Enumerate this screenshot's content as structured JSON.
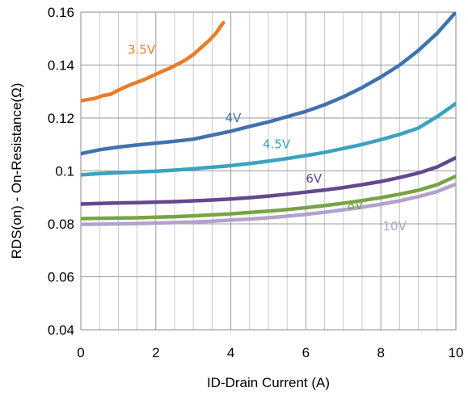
{
  "chart_data": {
    "type": "line",
    "title": "",
    "xlabel": "ID-Drain Current (A)",
    "ylabel": "RDS(on) - On-Resistance(Ω)",
    "xlim": [
      0,
      10
    ],
    "ylim": [
      0.04,
      0.16
    ],
    "x_ticks": [
      "0",
      "2",
      "4",
      "6",
      "8",
      "10"
    ],
    "y_ticks": [
      "0.04",
      "0.06",
      "0.08",
      "0.1",
      "0.12",
      "0.14",
      "0.16"
    ],
    "grid": true,
    "minor_grid_x": 0.5,
    "legend": "none",
    "series": [
      {
        "name": "3.5V",
        "color": "#e87d2a",
        "x": [
          0,
          0.2,
          0.4,
          0.6,
          0.8,
          1.0,
          1.2,
          1.4,
          1.6,
          1.8,
          2.0,
          2.2,
          2.4,
          2.6,
          2.8,
          3.0,
          3.2,
          3.4,
          3.6,
          3.8
        ],
        "values": [
          0.1265,
          0.127,
          0.1275,
          0.1285,
          0.129,
          0.1305,
          0.1318,
          0.133,
          0.134,
          0.1352,
          0.1365,
          0.1378,
          0.139,
          0.1405,
          0.142,
          0.144,
          0.1465,
          0.149,
          0.152,
          0.156
        ]
      },
      {
        "name": "4V",
        "color": "#3f72af",
        "x": [
          0,
          0.5,
          1,
          1.5,
          2,
          2.5,
          3,
          3.5,
          4,
          4.5,
          5,
          5.5,
          6,
          6.5,
          7,
          7.5,
          8,
          8.5,
          9,
          9.5,
          10
        ],
        "values": [
          0.1065,
          0.108,
          0.109,
          0.1098,
          0.1105,
          0.1112,
          0.112,
          0.1135,
          0.115,
          0.1168,
          0.1185,
          0.1205,
          0.1225,
          0.125,
          0.128,
          0.1315,
          0.1355,
          0.14,
          0.1455,
          0.152,
          0.16
        ]
      },
      {
        "name": "4.5V",
        "color": "#3ba3bf",
        "x": [
          0,
          0.5,
          1,
          1.5,
          2,
          2.5,
          3,
          3.5,
          4,
          4.5,
          5,
          5.5,
          6,
          6.5,
          7,
          7.5,
          8,
          8.5,
          9,
          9.5,
          10
        ],
        "values": [
          0.0985,
          0.099,
          0.0993,
          0.0996,
          0.0999,
          0.1003,
          0.1008,
          0.1014,
          0.102,
          0.1028,
          0.1037,
          0.1047,
          0.1058,
          0.107,
          0.1085,
          0.11,
          0.1118,
          0.1138,
          0.1162,
          0.1205,
          0.1255
        ]
      },
      {
        "name": "6V",
        "color": "#63488f",
        "x": [
          0,
          0.5,
          1,
          1.5,
          2,
          2.5,
          3,
          3.5,
          4,
          4.5,
          5,
          5.5,
          6,
          6.5,
          7,
          7.5,
          8,
          8.5,
          9,
          9.5,
          10
        ],
        "values": [
          0.0875,
          0.0877,
          0.0879,
          0.088,
          0.0882,
          0.0884,
          0.0887,
          0.089,
          0.0894,
          0.0899,
          0.0905,
          0.0912,
          0.092,
          0.0928,
          0.0937,
          0.0948,
          0.096,
          0.0975,
          0.0992,
          0.1015,
          0.105
        ]
      },
      {
        "name": "8V",
        "color": "#78a445",
        "x": [
          0,
          0.5,
          1,
          1.5,
          2,
          2.5,
          3,
          3.5,
          4,
          4.5,
          5,
          5.5,
          6,
          6.5,
          7,
          7.5,
          8,
          8.5,
          9,
          9.5,
          10
        ],
        "values": [
          0.082,
          0.0821,
          0.0822,
          0.0823,
          0.0825,
          0.0827,
          0.083,
          0.0834,
          0.0838,
          0.0843,
          0.0848,
          0.0854,
          0.0861,
          0.0869,
          0.0878,
          0.0888,
          0.0899,
          0.0912,
          0.0927,
          0.0948,
          0.098
        ]
      },
      {
        "name": "10V",
        "color": "#b3a2cb",
        "x": [
          0,
          0.5,
          1,
          1.5,
          2,
          2.5,
          3,
          3.5,
          4,
          4.5,
          5,
          5.5,
          6,
          6.5,
          7,
          7.5,
          8,
          8.5,
          9,
          9.5,
          10
        ],
        "values": [
          0.0798,
          0.0799,
          0.08,
          0.0801,
          0.0803,
          0.0805,
          0.0807,
          0.081,
          0.0814,
          0.0818,
          0.0823,
          0.0829,
          0.0836,
          0.0844,
          0.0853,
          0.0863,
          0.0874,
          0.0887,
          0.0903,
          0.0922,
          0.095
        ]
      }
    ],
    "annotations": [
      {
        "text": "3.5V",
        "x": 1.25,
        "y": 0.1442,
        "color": "#e87d2a"
      },
      {
        "text": "4V",
        "x": 3.85,
        "y": 0.1185,
        "color": "#3f72af"
      },
      {
        "text": "4.5V",
        "x": 4.85,
        "y": 0.1085,
        "color": "#3ba3bf"
      },
      {
        "text": "6V",
        "x": 6.0,
        "y": 0.0955,
        "color": "#63488f"
      },
      {
        "text": "8V",
        "x": 7.1,
        "y": 0.0855,
        "color": "#78a445"
      },
      {
        "text": "10V",
        "x": 8.05,
        "y": 0.0775,
        "color": "#b3a2cb"
      }
    ]
  }
}
